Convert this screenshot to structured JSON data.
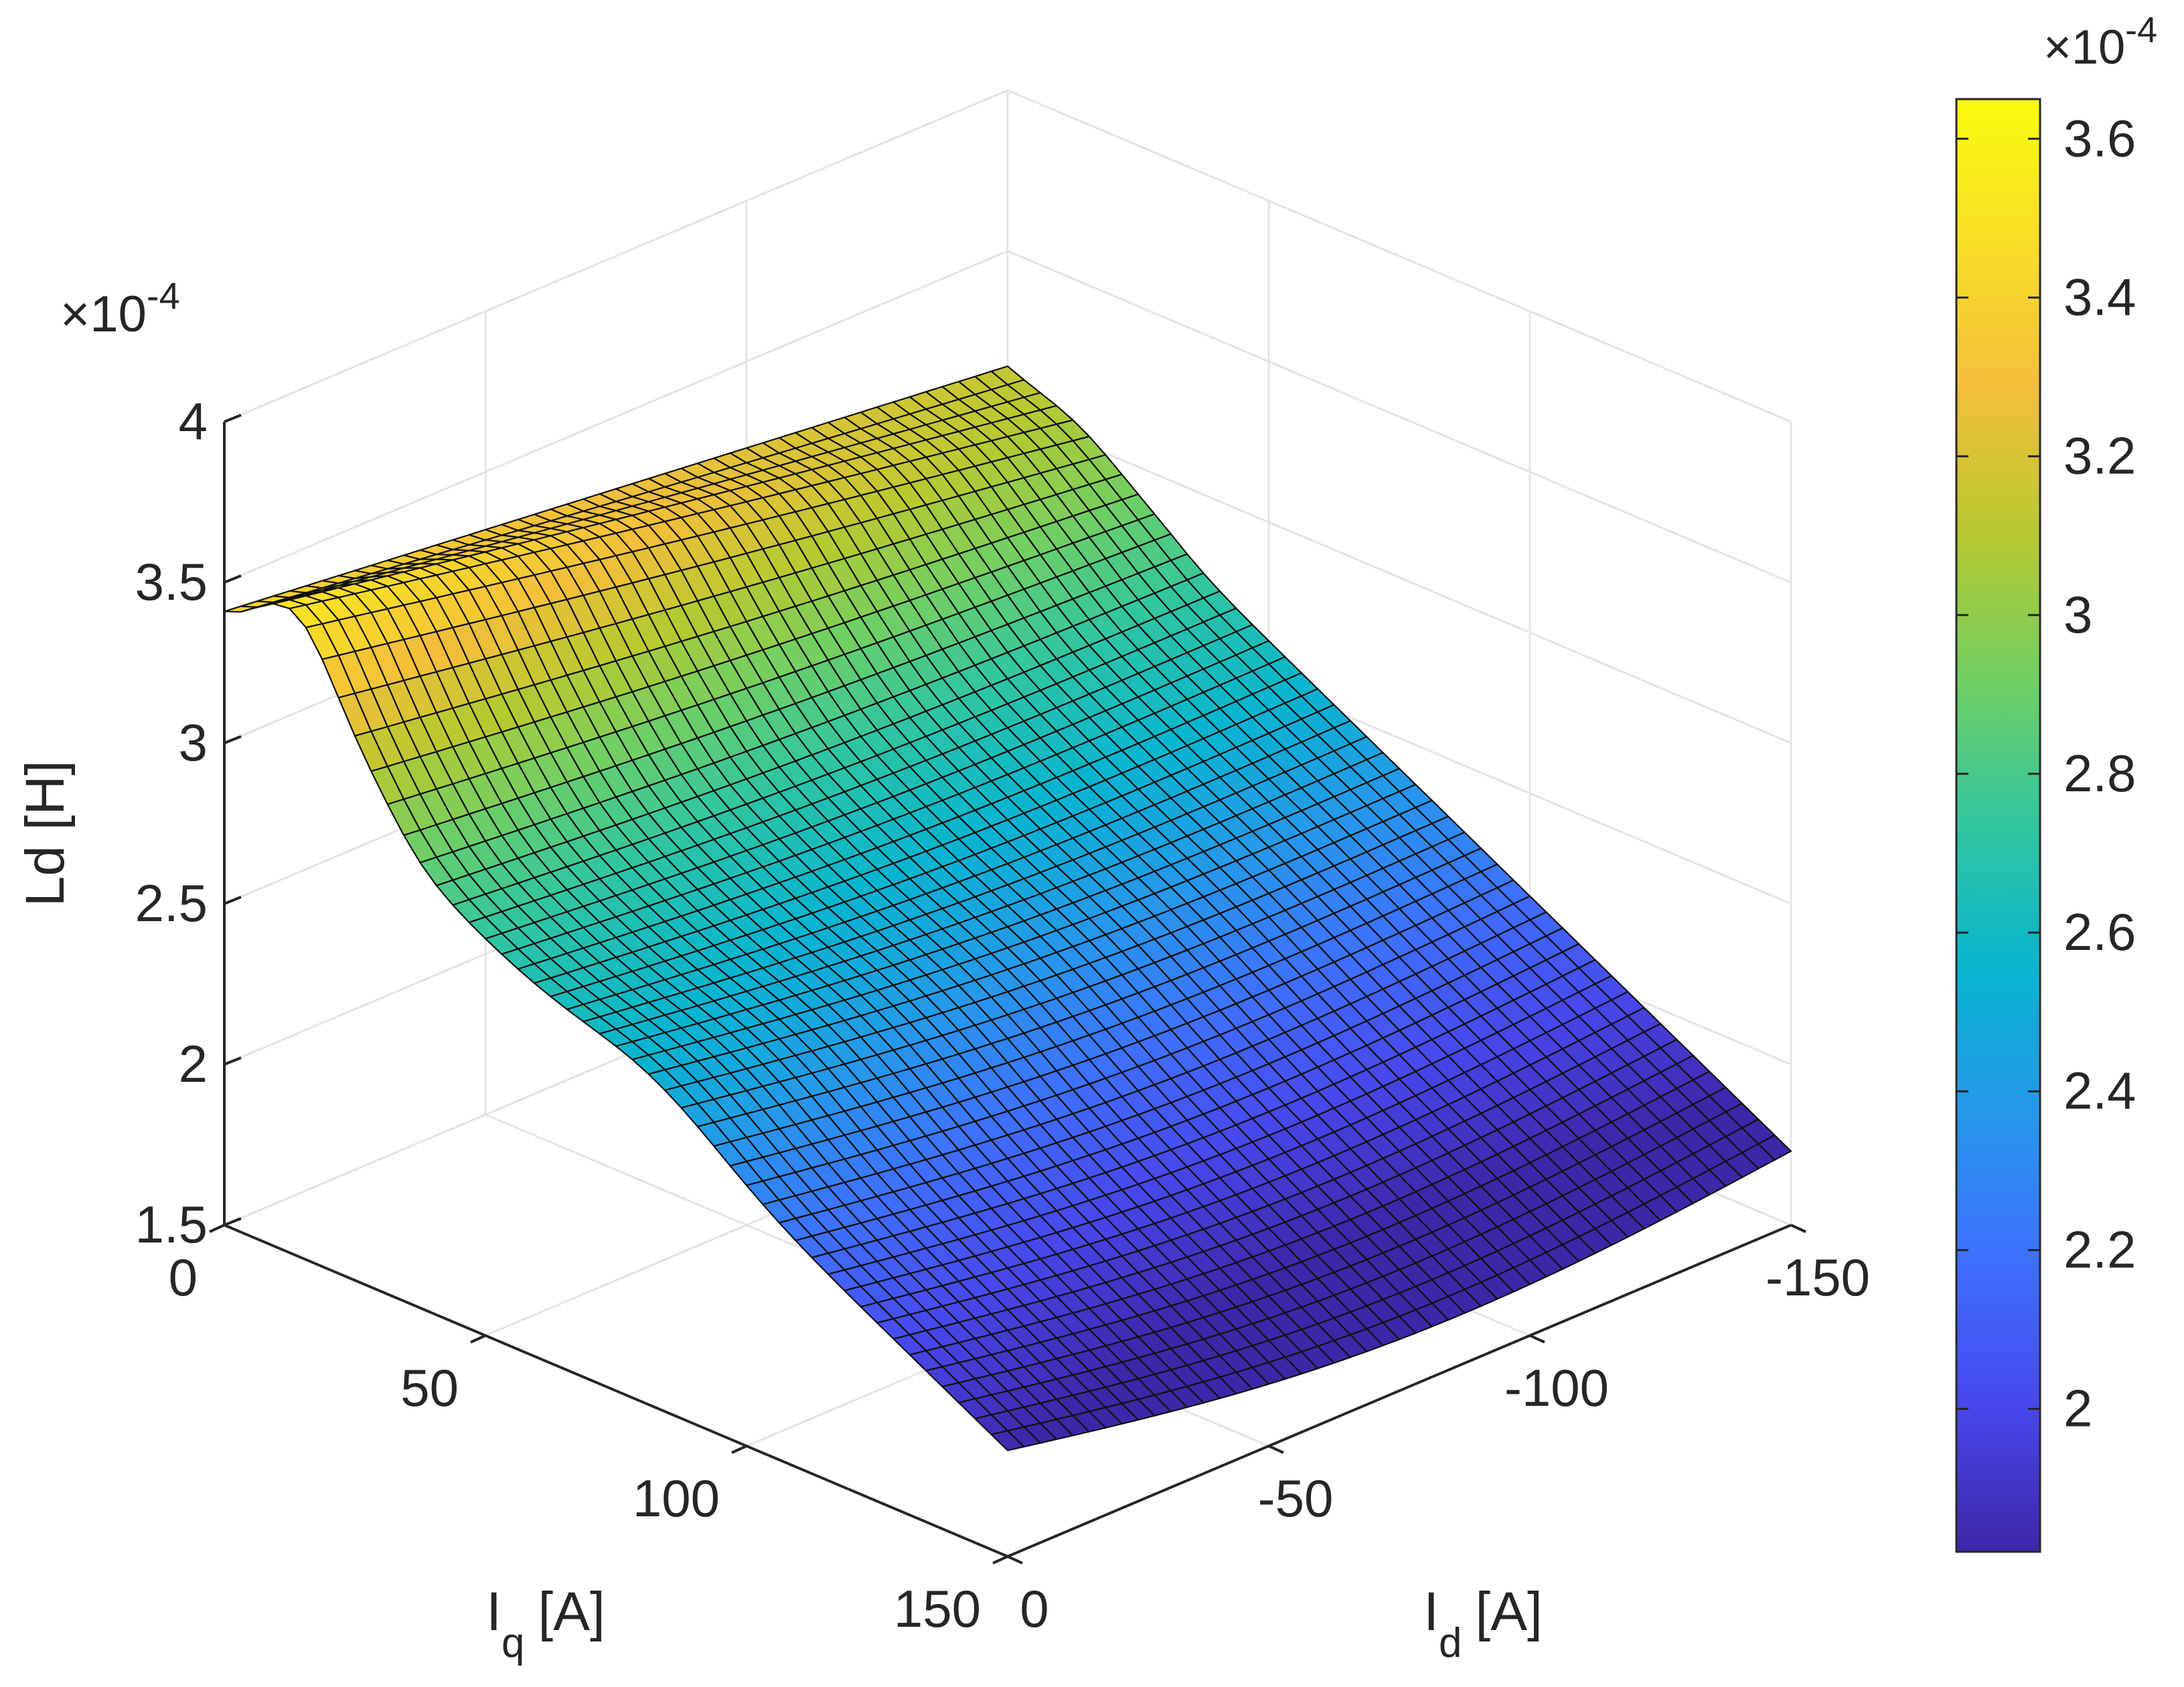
{
  "chart_data": {
    "type": "surface",
    "title": "",
    "xlabel": "I_d [A]",
    "ylabel": "I_q [A]",
    "zlabel": "Ld [H]",
    "x_axis": {
      "label_main": "I",
      "label_sub": "d",
      "label_unit": "[A]",
      "ticks": [
        0,
        -50,
        -100,
        -150
      ],
      "tick_labels": [
        "0",
        "-50",
        "-100",
        "-150"
      ],
      "lim": [
        -150,
        0
      ]
    },
    "y_axis": {
      "label_main": "I",
      "label_sub": "q",
      "label_unit": "[A]",
      "ticks": [
        0,
        50,
        100,
        150
      ],
      "tick_labels": [
        "0",
        "50",
        "100",
        "150"
      ],
      "lim": [
        0,
        150
      ]
    },
    "z_axis": {
      "label": "Ld [H]",
      "exponent_text": "×10",
      "exponent_power": "-4",
      "ticks": [
        1.5,
        2,
        2.5,
        3,
        3.5,
        4
      ],
      "tick_labels": [
        "1.5",
        "2",
        "2.5",
        "3",
        "3.5",
        "4"
      ],
      "lim": [
        1.5,
        4
      ]
    },
    "colorbar": {
      "exponent_text": "×10",
      "exponent_power": "-4",
      "ticks": [
        2,
        2.2,
        2.4,
        2.6,
        2.8,
        3,
        3.2,
        3.4,
        3.6
      ],
      "tick_labels": [
        "2",
        "2.2",
        "2.4",
        "2.6",
        "2.8",
        "3",
        "3.2",
        "3.4",
        "3.6"
      ],
      "lim": [
        1.82,
        3.65
      ],
      "colormap": "parula"
    },
    "grid": true,
    "colorbar_location": "right",
    "surface_samples": {
      "note_units": "Ld in units of 1e-4 H",
      "corners": [
        {
          "id": 0,
          "iq": 0,
          "ld": 3.38
        },
        {
          "id": 0,
          "iq": 150,
          "ld": 1.82
        },
        {
          "id": -150,
          "iq": 0,
          "ld": 3.08
        },
        {
          "id": -150,
          "iq": 150,
          "ld": 1.88
        }
      ],
      "peak": {
        "id": -20,
        "iq": 15,
        "ld": 3.62
      }
    }
  }
}
